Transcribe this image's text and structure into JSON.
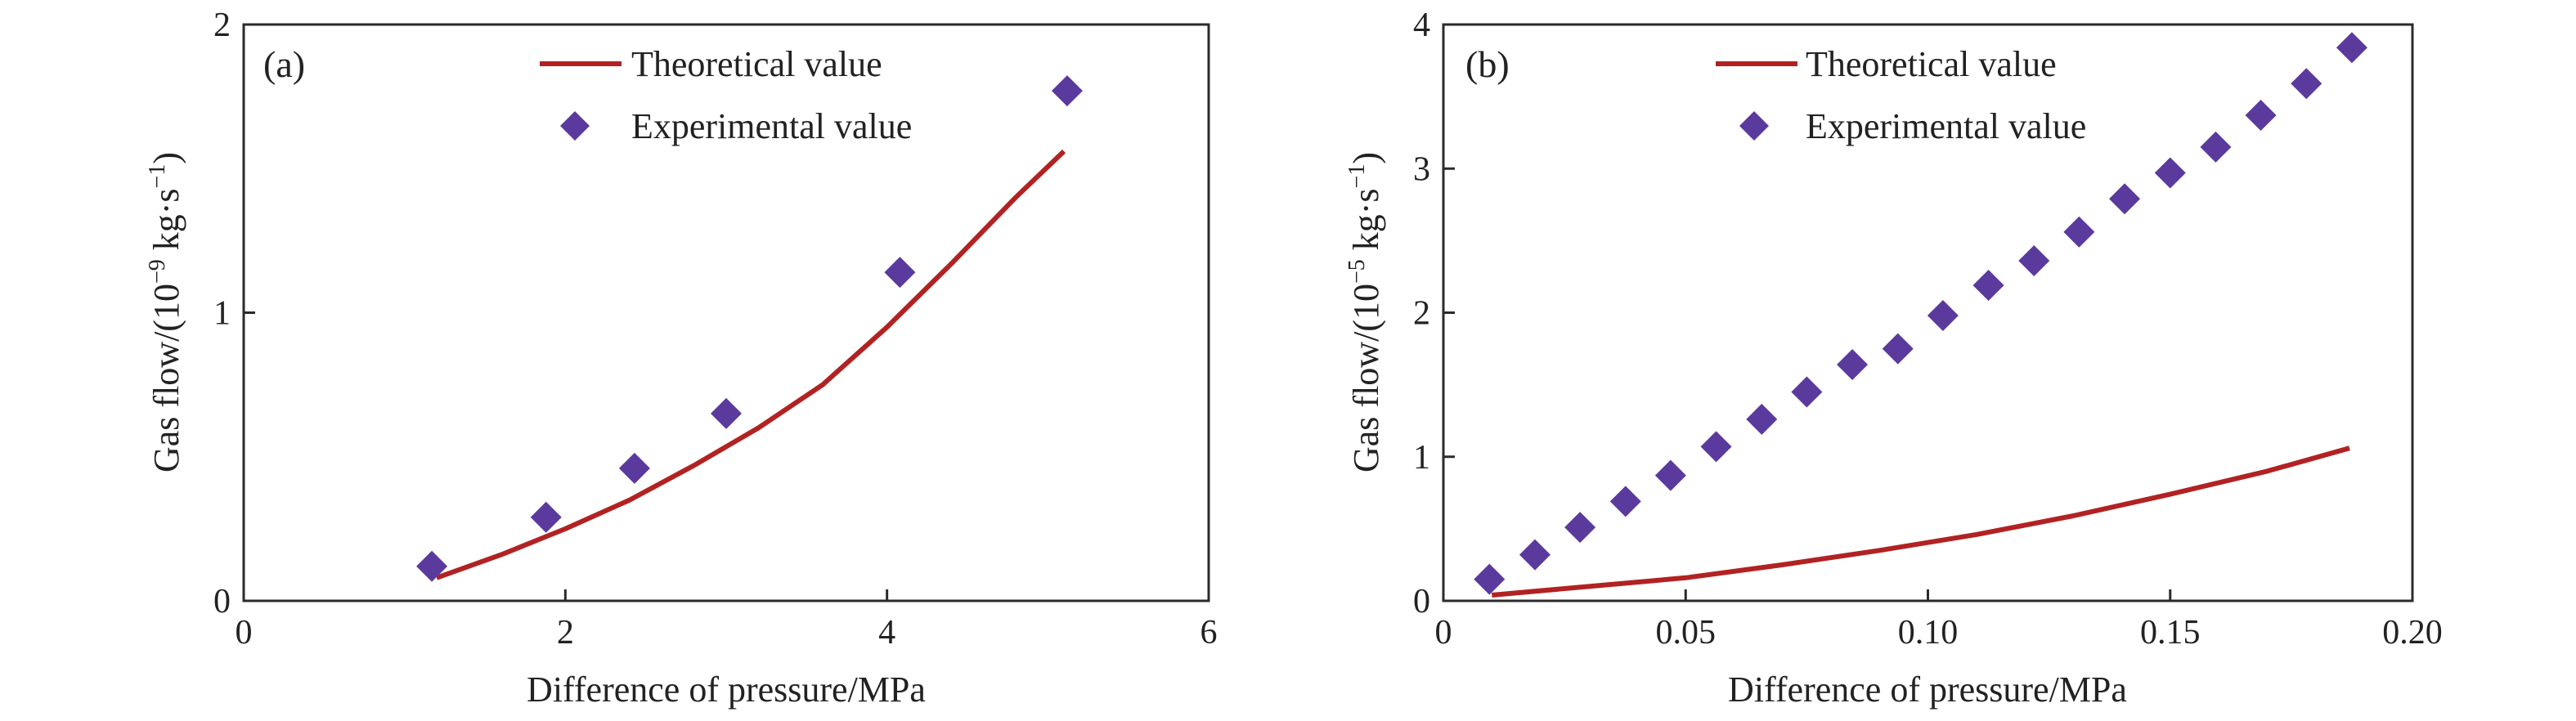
{
  "chart_data": [
    {
      "type": "line+scatter",
      "panel_label": "(a)",
      "xlabel": "Difference of pressure/MPa",
      "ylabel_main": "Gas flow/(10",
      "ylabel_exp": "−9",
      "ylabel_unit": " kg·s",
      "ylabel_unit_exp": "−1",
      "ylabel_close": ")",
      "xlim": [
        0,
        6
      ],
      "ylim": [
        0,
        2
      ],
      "xticks": [
        0,
        2,
        4,
        6
      ],
      "yticks": [
        0,
        1,
        2
      ],
      "xtick_labels": [
        "0",
        "2",
        "4",
        "6"
      ],
      "ytick_labels": [
        "0",
        "1",
        "2"
      ],
      "legend_position": "top-center",
      "series": [
        {
          "name": "Theoretical value",
          "kind": "line",
          "color": "#b22222",
          "x": [
            1.2,
            1.6,
            2.0,
            2.4,
            2.8,
            3.2,
            3.6,
            4.0,
            4.4,
            4.8,
            5.1
          ],
          "y": [
            0.08,
            0.16,
            0.25,
            0.35,
            0.47,
            0.6,
            0.75,
            0.95,
            1.17,
            1.4,
            1.56
          ]
        },
        {
          "name": "Experimental value",
          "kind": "scatter",
          "marker": "diamond",
          "color": "#5b3a9e",
          "x": [
            1.17,
            1.88,
            2.43,
            3.0,
            4.08,
            5.12
          ],
          "y": [
            0.12,
            0.29,
            0.46,
            0.65,
            1.14,
            1.77
          ]
        }
      ]
    },
    {
      "type": "line+scatter",
      "panel_label": "(b)",
      "xlabel": "Difference of pressure/MPa",
      "ylabel_main": "Gas flow/(10",
      "ylabel_exp": "−5",
      "ylabel_unit": " kg·s",
      "ylabel_unit_exp": "−1",
      "ylabel_close": ")",
      "xlim": [
        0,
        0.2
      ],
      "ylim": [
        0,
        4
      ],
      "xticks": [
        0,
        0.05,
        0.1,
        0.15,
        0.2
      ],
      "yticks": [
        0,
        1,
        2,
        3,
        4
      ],
      "xtick_labels": [
        "0",
        "0.05",
        "0.10",
        "0.15",
        "0.20"
      ],
      "ytick_labels": [
        "0",
        "1",
        "2",
        "3",
        "4"
      ],
      "legend_position": "top-center",
      "series": [
        {
          "name": "Theoretical value",
          "kind": "line",
          "color": "#b22222",
          "x": [
            0.01,
            0.03,
            0.05,
            0.07,
            0.09,
            0.11,
            0.13,
            0.15,
            0.17,
            0.187
          ],
          "y": [
            0.04,
            0.1,
            0.16,
            0.25,
            0.35,
            0.46,
            0.59,
            0.74,
            0.9,
            1.06
          ]
        },
        {
          "name": "Experimental value",
          "kind": "scatter",
          "marker": "diamond",
          "color": "#5b3a9e",
          "x": [
            0.0095,
            0.0189,
            0.0282,
            0.0376,
            0.0469,
            0.0563,
            0.0657,
            0.075,
            0.0844,
            0.0938,
            0.1031,
            0.1125,
            0.1219,
            0.1312,
            0.1406,
            0.15,
            0.1594,
            0.1687,
            0.1781,
            0.1875
          ],
          "y": [
            0.15,
            0.32,
            0.51,
            0.69,
            0.87,
            1.07,
            1.26,
            1.45,
            1.64,
            1.75,
            1.98,
            2.19,
            2.36,
            2.56,
            2.79,
            2.97,
            3.15,
            3.37,
            3.59,
            3.84
          ]
        }
      ]
    }
  ]
}
